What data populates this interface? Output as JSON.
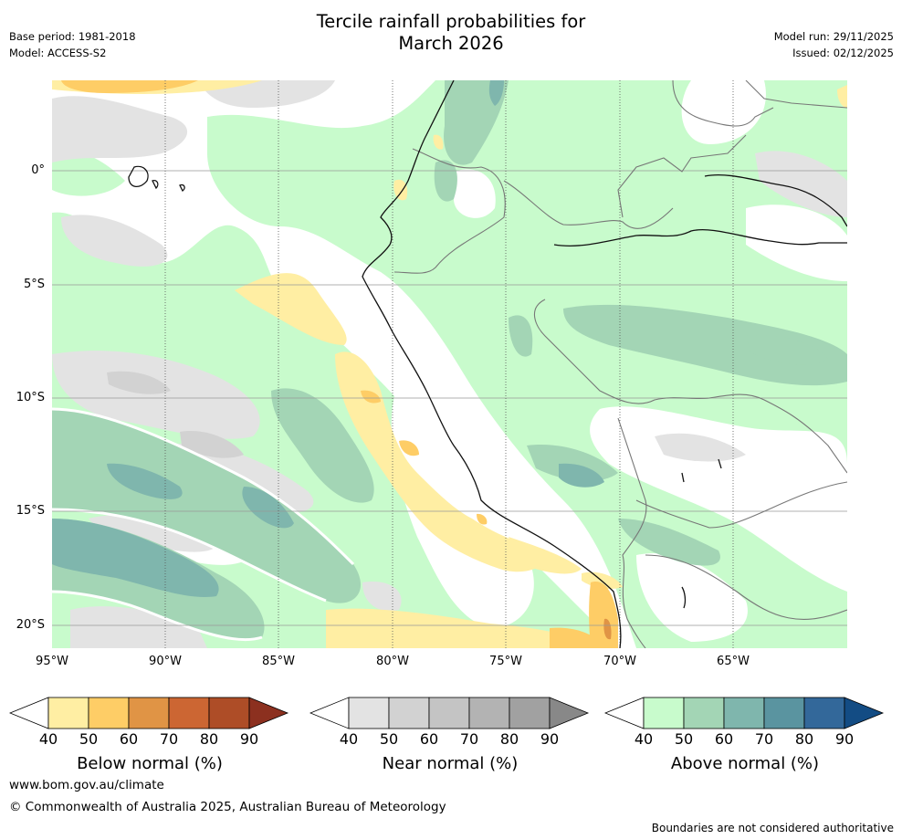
{
  "header": {
    "title_line1": "Tercile rainfall probabilities for",
    "title_line2": "March 2026",
    "base_period": "Base period: 1981-2018",
    "model": "Model: ACCESS-S2",
    "model_run": "Model run: 29/11/2025",
    "issued": "Issued: 02/12/2025"
  },
  "map": {
    "y_ticks": [
      "0°",
      "5°S",
      "10°S",
      "15°S",
      "20°S"
    ],
    "x_ticks": [
      "95°W",
      "90°W",
      "85°W",
      "80°W",
      "75°W",
      "70°W",
      "65°W"
    ]
  },
  "legends": [
    {
      "label": "Below normal (%)",
      "ticks": [
        "40",
        "50",
        "60",
        "70",
        "80",
        "90"
      ],
      "colors": [
        "#ffffff",
        "#ffeea3",
        "#fecd66",
        "#e09445",
        "#cc6633",
        "#ae4d27",
        "#8c301f"
      ]
    },
    {
      "label": "Near normal (%)",
      "ticks": [
        "40",
        "50",
        "60",
        "70",
        "80",
        "90"
      ],
      "colors": [
        "#ffffff",
        "#e3e3e3",
        "#d2d2d2",
        "#c4c4c4",
        "#b3b3b3",
        "#a1a1a1",
        "#888888"
      ]
    },
    {
      "label": "Above normal (%)",
      "ticks": [
        "40",
        "50",
        "60",
        "70",
        "80",
        "90"
      ],
      "colors": [
        "#ffffff",
        "#c8fbcc",
        "#a3d5b5",
        "#7fb6ad",
        "#5a94a0",
        "#33689a",
        "#134c84"
      ]
    }
  ],
  "footer": {
    "url": "www.bom.gov.au/climate",
    "copyright": "© Commonwealth of Australia 2025, Australian Bureau of Meteorology",
    "disclaimer": "Boundaries are not considered authoritative"
  }
}
